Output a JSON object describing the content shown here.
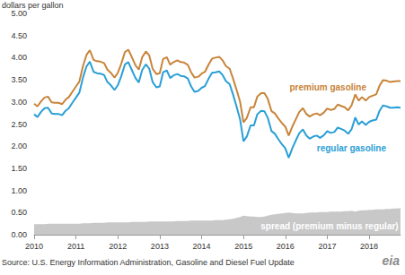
{
  "chart_data": {
    "type": "line",
    "ylabel": "dollars per gallon",
    "source": "Source: U.S. Energy Information Administration, Gasoline and Diesel Fuel Update",
    "logo": "eia",
    "grid": false,
    "xlim": [
      2010,
      2018.75
    ],
    "xticks": [
      2010,
      2011,
      2012,
      2013,
      2014,
      2015,
      2016,
      2017,
      2018
    ],
    "ylim": [
      0,
      5
    ],
    "yticks": [
      {
        "value": 0,
        "label": "0.00"
      },
      {
        "value": 0.5,
        "label": "0.50"
      },
      {
        "value": 1,
        "label": "1.00"
      },
      {
        "value": 1.5,
        "label": "1.50"
      },
      {
        "value": 2,
        "label": "2.00"
      },
      {
        "value": 2.5,
        "label": "2.50"
      },
      {
        "value": 3,
        "label": "3.00"
      },
      {
        "value": 3.5,
        "label": "3.50"
      },
      {
        "value": 4,
        "label": "4.00"
      },
      {
        "value": 4.5,
        "label": "4.50"
      },
      {
        "value": 5,
        "label": "5.00"
      }
    ],
    "x": [
      2010.0,
      2010.08,
      2010.17,
      2010.25,
      2010.33,
      2010.42,
      2010.5,
      2010.58,
      2010.67,
      2010.75,
      2010.83,
      2010.92,
      2011.0,
      2011.08,
      2011.17,
      2011.25,
      2011.33,
      2011.42,
      2011.5,
      2011.58,
      2011.67,
      2011.75,
      2011.83,
      2011.92,
      2012.0,
      2012.08,
      2012.17,
      2012.25,
      2012.33,
      2012.42,
      2012.5,
      2012.58,
      2012.67,
      2012.75,
      2012.83,
      2012.92,
      2013.0,
      2013.08,
      2013.17,
      2013.25,
      2013.33,
      2013.42,
      2013.5,
      2013.58,
      2013.67,
      2013.75,
      2013.83,
      2013.92,
      2014.0,
      2014.08,
      2014.17,
      2014.25,
      2014.33,
      2014.42,
      2014.5,
      2014.58,
      2014.67,
      2014.75,
      2014.83,
      2014.92,
      2015.0,
      2015.08,
      2015.17,
      2015.25,
      2015.33,
      2015.42,
      2015.5,
      2015.58,
      2015.67,
      2015.75,
      2015.83,
      2015.92,
      2016.0,
      2016.08,
      2016.17,
      2016.25,
      2016.33,
      2016.42,
      2016.5,
      2016.58,
      2016.67,
      2016.75,
      2016.83,
      2016.92,
      2017.0,
      2017.08,
      2017.17,
      2017.25,
      2017.33,
      2017.42,
      2017.5,
      2017.58,
      2017.67,
      2017.75,
      2017.83,
      2017.92,
      2018.0,
      2018.08,
      2018.17,
      2018.25,
      2018.33,
      2018.42,
      2018.5,
      2018.58,
      2018.67,
      2018.75
    ],
    "series": [
      {
        "name": "spread (premium minus regular)",
        "type": "area",
        "color": "#c8c8c8",
        "values": [
          0.24,
          0.24,
          0.24,
          0.24,
          0.25,
          0.25,
          0.25,
          0.25,
          0.25,
          0.25,
          0.25,
          0.25,
          0.25,
          0.25,
          0.26,
          0.26,
          0.26,
          0.27,
          0.27,
          0.27,
          0.27,
          0.28,
          0.28,
          0.28,
          0.28,
          0.28,
          0.28,
          0.28,
          0.29,
          0.29,
          0.29,
          0.29,
          0.29,
          0.3,
          0.3,
          0.3,
          0.3,
          0.3,
          0.3,
          0.3,
          0.3,
          0.31,
          0.31,
          0.31,
          0.31,
          0.32,
          0.32,
          0.32,
          0.32,
          0.32,
          0.32,
          0.32,
          0.33,
          0.33,
          0.33,
          0.34,
          0.35,
          0.36,
          0.38,
          0.4,
          0.43,
          0.42,
          0.41,
          0.41,
          0.4,
          0.4,
          0.41,
          0.43,
          0.45,
          0.46,
          0.47,
          0.48,
          0.49,
          0.5,
          0.49,
          0.48,
          0.48,
          0.48,
          0.49,
          0.5,
          0.5,
          0.5,
          0.51,
          0.51,
          0.51,
          0.52,
          0.52,
          0.52,
          0.52,
          0.53,
          0.53,
          0.54,
          0.52,
          0.54,
          0.55,
          0.55,
          0.56,
          0.56,
          0.57,
          0.57,
          0.57,
          0.58,
          0.58,
          0.59,
          0.59,
          0.6
        ]
      },
      {
        "name": "premium gasoline",
        "type": "line",
        "color": "#c8843a",
        "values": [
          2.96,
          2.9,
          3.02,
          3.1,
          3.12,
          2.99,
          2.98,
          2.98,
          2.95,
          3.05,
          3.11,
          3.24,
          3.35,
          3.46,
          3.82,
          4.06,
          4.17,
          3.95,
          3.92,
          3.91,
          3.88,
          3.73,
          3.66,
          3.55,
          3.66,
          3.86,
          4.13,
          4.18,
          4.02,
          3.83,
          3.73,
          4.01,
          4.14,
          4.05,
          3.75,
          3.63,
          3.65,
          3.97,
          4.01,
          3.84,
          3.9,
          3.94,
          3.9,
          3.89,
          3.84,
          3.67,
          3.55,
          3.57,
          3.64,
          3.68,
          3.85,
          3.98,
          4.0,
          4.02,
          3.94,
          3.81,
          3.75,
          3.53,
          3.29,
          3.0,
          2.54,
          2.64,
          2.88,
          2.88,
          3.12,
          3.2,
          3.2,
          3.07,
          2.79,
          2.74,
          2.63,
          2.52,
          2.44,
          2.24,
          2.45,
          2.61,
          2.77,
          2.86,
          2.73,
          2.67,
          2.72,
          2.74,
          2.7,
          2.76,
          2.85,
          2.82,
          2.84,
          2.94,
          2.91,
          2.88,
          2.81,
          2.92,
          3.17,
          3.03,
          3.11,
          3.03,
          3.11,
          3.14,
          3.17,
          3.37,
          3.49,
          3.48,
          3.45,
          3.46,
          3.47,
          3.47
        ]
      },
      {
        "name": "regular gasoline",
        "type": "line",
        "color": "#2a9fd6",
        "values": [
          2.72,
          2.66,
          2.78,
          2.86,
          2.87,
          2.74,
          2.73,
          2.73,
          2.7,
          2.8,
          2.86,
          2.99,
          3.1,
          3.21,
          3.56,
          3.8,
          3.91,
          3.68,
          3.65,
          3.64,
          3.61,
          3.45,
          3.38,
          3.27,
          3.38,
          3.58,
          3.85,
          3.9,
          3.73,
          3.54,
          3.44,
          3.72,
          3.85,
          3.75,
          3.45,
          3.33,
          3.35,
          3.67,
          3.71,
          3.54,
          3.6,
          3.63,
          3.59,
          3.58,
          3.53,
          3.35,
          3.23,
          3.25,
          3.32,
          3.36,
          3.53,
          3.66,
          3.67,
          3.69,
          3.61,
          3.47,
          3.4,
          3.17,
          2.91,
          2.6,
          2.11,
          2.22,
          2.47,
          2.47,
          2.72,
          2.8,
          2.79,
          2.64,
          2.34,
          2.28,
          2.16,
          2.04,
          1.95,
          1.74,
          1.96,
          2.13,
          2.29,
          2.38,
          2.24,
          2.17,
          2.22,
          2.24,
          2.19,
          2.25,
          2.34,
          2.3,
          2.32,
          2.42,
          2.39,
          2.35,
          2.28,
          2.38,
          2.65,
          2.49,
          2.56,
          2.48,
          2.55,
          2.58,
          2.6,
          2.8,
          2.92,
          2.9,
          2.87,
          2.87,
          2.88,
          2.87
        ]
      }
    ]
  }
}
